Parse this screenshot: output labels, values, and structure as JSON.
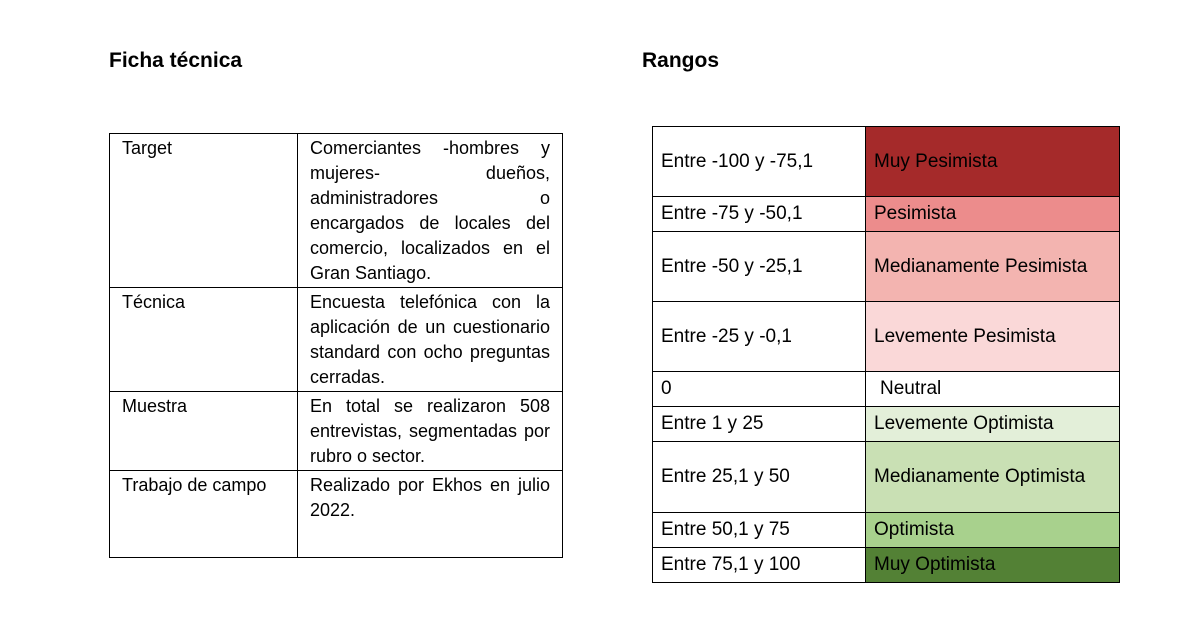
{
  "ficha": {
    "title": "Ficha técnica",
    "rows": [
      {
        "label": "Target",
        "value": "Comerciantes -hombres y mujeres- dueños, administradores o encargados de locales del comercio, localizados en el Gran Santiago."
      },
      {
        "label": "Técnica",
        "value": "Encuesta telefónica con la aplicación de un cuestionario standard con ocho preguntas cerradas."
      },
      {
        "label": "Muestra",
        "value": "En total se realizaron 508 entrevistas, segmentadas por rubro o sector."
      },
      {
        "label": "Trabajo de campo",
        "value": "Realizado por Ekhos en julio 2022."
      }
    ]
  },
  "rangos": {
    "title": "Rangos",
    "rows": [
      {
        "range": "Entre -100 y -75,1",
        "label": "Muy Pesimista",
        "color": "#a52a2a"
      },
      {
        "range": "Entre -75 y -50,1",
        "label": "Pesimista",
        "color": "#ec8c8c"
      },
      {
        "range": "Entre -50 y -25,1",
        "label": "Medianamente Pesimista",
        "color": "#f3b4b0"
      },
      {
        "range": "Entre -25 y -0,1",
        "label": "Levemente Pesimista",
        "color": "#fad8d8"
      },
      {
        "range": "0",
        "label": "Neutral",
        "color": "#ffffff"
      },
      {
        "range": "Entre 1 y 25",
        "label": "Levemente Optimista",
        "color": "#e3efd9"
      },
      {
        "range": "Entre 25,1 y 50",
        "label": "Medianamente Optimista",
        "color": "#c9e0b4"
      },
      {
        "range": "Entre 50,1 y 75",
        "label": "Optimista",
        "color": "#a8d18d"
      },
      {
        "range": "Entre 75,1 y 100",
        "label": "Muy Optimista",
        "color": "#538135"
      }
    ]
  }
}
